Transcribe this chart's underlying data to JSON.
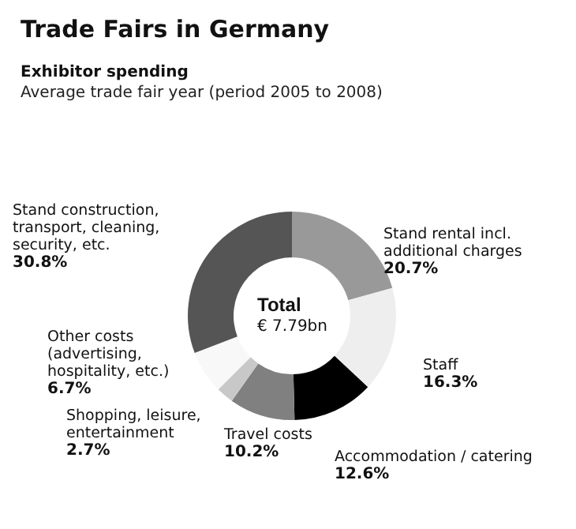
{
  "chart_data": {
    "type": "donut",
    "title": "Trade Fairs in Germany",
    "subtitle": "Exhibitor spending\nAverage trade fair year (period 2005 to 2008)",
    "categories": [
      "Stand rental incl. additional charges",
      "Staff",
      "Accommodation / catering",
      "Travel costs",
      "Shopping, leisure, entertainment",
      "Other costs (advertising, hospitality, etc.)",
      "Stand construction, transport, cleaning, security, etc."
    ],
    "values": [
      20.7,
      16.3,
      12.6,
      10.2,
      2.7,
      6.7,
      30.8
    ],
    "colors": [
      "#999999",
      "#eeeeee",
      "#000000",
      "#808080",
      "#c8c8c8",
      "#f8f8f8",
      "#555555"
    ],
    "value_labels": [
      "20.7%",
      "16.3%",
      "12.6%",
      "10.2%",
      "2.7%",
      "6.7%",
      "30.8%"
    ],
    "annotations": [
      "Total",
      "€ 7.79bn"
    ],
    "legend": false
  }
}
